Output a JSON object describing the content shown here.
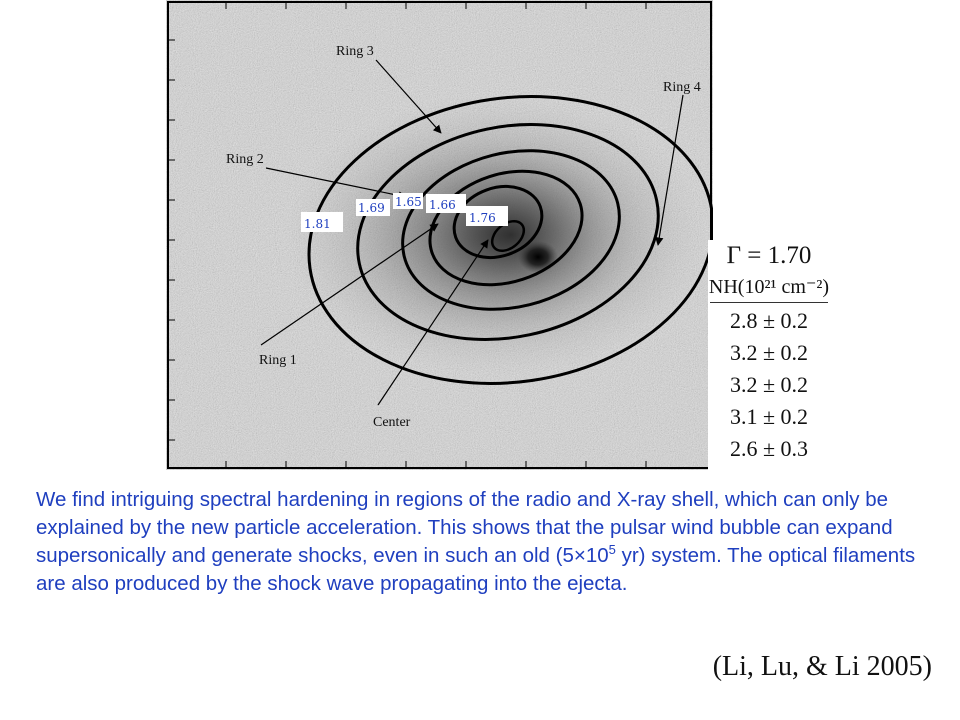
{
  "figure": {
    "annotations": {
      "ring1": "Ring 1",
      "ring2": "Ring 2",
      "ring3": "Ring 3",
      "ring4": "Ring 4",
      "center": "Center"
    },
    "gamma_labels": [
      "1.81",
      "1.69",
      "1.65",
      "1.66",
      "1.76"
    ],
    "colors": {
      "label_blue": "#1f3fbf",
      "ring_black": "#000000"
    }
  },
  "table": {
    "title": "Γ = 1.70",
    "column_header": "NH(10²¹ cm⁻²)",
    "rows": [
      "2.8 ± 0.2",
      "3.2 ± 0.2",
      "3.2 ± 0.2",
      "3.1 ± 0.2",
      "2.6 ± 0.3"
    ]
  },
  "caption": {
    "text_before_sup": "We find intriguing spectral hardening in regions of the radio and X-ray shell, which can only be explained by the new particle acceleration. This shows that the pulsar wind bubble can expand supersonically and generate shocks, even in such an old (5×10",
    "sup": "5",
    "text_after_sup": " yr) system.  The optical filaments are also produced by the shock wave propagating into the ejecta."
  },
  "citation": "(Li, Lu, & Li 2005)",
  "colors": {
    "caption_text": "#1f3fbf"
  }
}
